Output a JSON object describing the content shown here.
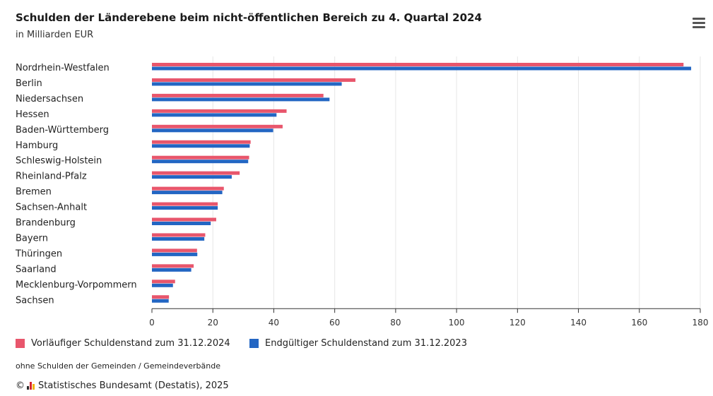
{
  "header": {
    "title": "Schulden der Länderebene beim nicht-öffentlichen Bereich zu 4. Quartal 2024",
    "subtitle": "in Milliarden EUR"
  },
  "menu_icon": "hamburger-menu-icon",
  "colors": {
    "series1": "#e8566c",
    "series2": "#2366c3",
    "grid": "#e6e6e6",
    "axis": "#333333"
  },
  "legend": {
    "item1": "Vorläufiger Schuldenstand zum 31.12.2024",
    "item2": "Endgültiger Schuldenstand zum 31.12.2023"
  },
  "footer": {
    "note": "ohne Schulden der Gemeinden / Gemeindeverbände",
    "copyright_symbol": "©",
    "credit": "Statistisches Bundesamt (Destatis), 2025"
  },
  "chart_data": {
    "type": "bar",
    "orientation": "horizontal",
    "categories": [
      "Nordrhein-Westfalen",
      "Berlin",
      "Niedersachsen",
      "Hessen",
      "Baden-Württemberg",
      "Hamburg",
      "Schleswig-Holstein",
      "Rheinland-Pfalz",
      "Bremen",
      "Sachsen-Anhalt",
      "Brandenburg",
      "Bayern",
      "Thüringen",
      "Saarland",
      "Mecklenburg-Vorpommern",
      "Sachsen"
    ],
    "series": [
      {
        "name": "Vorläufiger Schuldenstand zum 31.12.2024",
        "values": [
          174.5,
          66.8,
          56.3,
          44.2,
          42.9,
          32.4,
          31.9,
          28.8,
          23.6,
          21.6,
          21.1,
          17.5,
          14.8,
          13.7,
          7.6,
          5.6
        ]
      },
      {
        "name": "Endgültiger Schuldenstand zum 31.12.2023",
        "values": [
          177.0,
          62.3,
          58.3,
          40.9,
          39.8,
          32.1,
          31.6,
          26.2,
          23.1,
          21.6,
          19.3,
          17.2,
          14.9,
          12.9,
          6.9,
          5.5
        ]
      }
    ],
    "xlim": [
      0,
      180
    ],
    "xticks": [
      "0",
      "20",
      "40",
      "60",
      "80",
      "100",
      "120",
      "140",
      "160",
      "180"
    ],
    "grid": true,
    "legend_position": "bottom"
  }
}
